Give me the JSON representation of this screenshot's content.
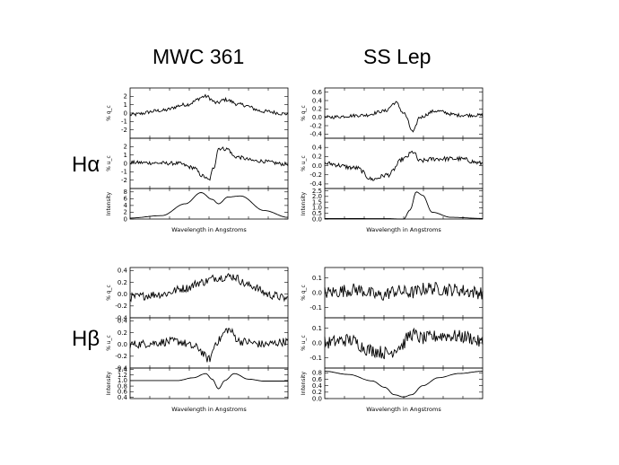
{
  "col_titles": [
    "MWC 361",
    "SS Lep"
  ],
  "row_labels": [
    "Hα",
    "Hβ"
  ],
  "chart_data": [
    {
      "type": "line",
      "object": "MWC 361",
      "line": "Hα",
      "xlabel": "Wavelength in Angstroms",
      "panels": [
        {
          "ylabel": "% q_c",
          "ylim": [
            -3,
            3
          ],
          "yticks": [
            "2",
            "1",
            "0",
            "-1",
            "-2"
          ],
          "ytick_values": [
            2,
            1,
            0,
            -1,
            -2
          ],
          "shape": [
            [
              0,
              -0.2
            ],
            [
              0.2,
              0.3
            ],
            [
              0.35,
              1.0
            ],
            [
              0.48,
              2.0
            ],
            [
              0.55,
              1.2
            ],
            [
              0.6,
              1.6
            ],
            [
              0.7,
              1.0
            ],
            [
              0.85,
              0.2
            ],
            [
              1,
              -0.1
            ]
          ],
          "noise": 0.22
        },
        {
          "ylabel": "% u_c",
          "ylim": [
            -3,
            3
          ],
          "yticks": [
            "2",
            "1",
            "0",
            "-1",
            "-2"
          ],
          "ytick_values": [
            2,
            1,
            0,
            -1,
            -2
          ],
          "shape": [
            [
              0,
              0.1
            ],
            [
              0.3,
              0.0
            ],
            [
              0.4,
              -0.5
            ],
            [
              0.46,
              -1.5
            ],
            [
              0.5,
              -2.0
            ],
            [
              0.53,
              -0.5
            ],
            [
              0.56,
              1.8
            ],
            [
              0.62,
              1.7
            ],
            [
              0.66,
              0.8
            ],
            [
              0.8,
              0.3
            ],
            [
              1,
              -0.1
            ]
          ],
          "noise": 0.22
        },
        {
          "ylabel": "Intensity",
          "ylim": [
            0,
            9
          ],
          "yticks": [
            "8",
            "6",
            "4",
            "2",
            "0"
          ],
          "ytick_values": [
            8,
            6,
            4,
            2,
            0
          ],
          "shape": [
            [
              0,
              0.3
            ],
            [
              0.2,
              1.0
            ],
            [
              0.35,
              4.5
            ],
            [
              0.45,
              7.8
            ],
            [
              0.52,
              5.8
            ],
            [
              0.56,
              4.5
            ],
            [
              0.62,
              6.5
            ],
            [
              0.7,
              6.8
            ],
            [
              0.85,
              2.5
            ],
            [
              1,
              0.5
            ]
          ],
          "noise": 0
        }
      ]
    },
    {
      "type": "line",
      "object": "SS Lep",
      "line": "Hα",
      "xlabel": "Wavelength in Angstroms",
      "panels": [
        {
          "ylabel": "% q_c",
          "ylim": [
            -0.5,
            0.7
          ],
          "yticks": [
            "0.6",
            "0.4",
            "0.2",
            "0.0",
            "-0.2",
            "-0.4"
          ],
          "ytick_values": [
            0.6,
            0.4,
            0.2,
            0.0,
            -0.2,
            -0.4
          ],
          "shape": [
            [
              0,
              0.0
            ],
            [
              0.25,
              0.05
            ],
            [
              0.38,
              0.15
            ],
            [
              0.45,
              0.35
            ],
            [
              0.5,
              0.1
            ],
            [
              0.56,
              -0.35
            ],
            [
              0.6,
              0.0
            ],
            [
              0.7,
              0.15
            ],
            [
              0.85,
              0.05
            ],
            [
              1,
              0.05
            ]
          ],
          "noise": 0.04
        },
        {
          "ylabel": "% u_c",
          "ylim": [
            -0.5,
            0.6
          ],
          "yticks": [
            "0.4",
            "0.2",
            "0.0",
            "-0.2",
            "-0.4"
          ],
          "ytick_values": [
            0.4,
            0.2,
            0.0,
            -0.2,
            -0.4
          ],
          "shape": [
            [
              0,
              0.05
            ],
            [
              0.2,
              -0.05
            ],
            [
              0.3,
              -0.3
            ],
            [
              0.4,
              -0.2
            ],
            [
              0.5,
              0.15
            ],
            [
              0.56,
              0.3
            ],
            [
              0.6,
              0.1
            ],
            [
              0.7,
              0.15
            ],
            [
              0.85,
              0.15
            ],
            [
              1,
              0.05
            ]
          ],
          "noise": 0.05
        },
        {
          "ylabel": "Intensity",
          "ylim": [
            0,
            2.7
          ],
          "yticks": [
            "2.5",
            "2.0",
            "1.5",
            "1.0",
            "0.5",
            "0.0"
          ],
          "ytick_values": [
            2.5,
            2.0,
            1.5,
            1.0,
            0.5,
            0.0
          ],
          "shape": [
            [
              0,
              0.05
            ],
            [
              0.4,
              0.03
            ],
            [
              0.5,
              0.0
            ],
            [
              0.54,
              0.8
            ],
            [
              0.58,
              2.4
            ],
            [
              0.62,
              2.1
            ],
            [
              0.68,
              0.6
            ],
            [
              0.8,
              0.15
            ],
            [
              1,
              0.05
            ]
          ],
          "noise": 0
        }
      ]
    },
    {
      "type": "line",
      "object": "MWC 361",
      "line": "Hβ",
      "xlabel": "Wavelength in Angstroms",
      "panels": [
        {
          "ylabel": "% q_c",
          "ylim": [
            -0.4,
            0.45
          ],
          "yticks": [
            "0.4",
            "0.2",
            "0.0",
            "-0.2",
            "-0.4"
          ],
          "ytick_values": [
            0.4,
            0.2,
            0.0,
            -0.2,
            -0.4
          ],
          "shape": [
            [
              0,
              -0.05
            ],
            [
              0.2,
              0.0
            ],
            [
              0.35,
              0.1
            ],
            [
              0.45,
              0.2
            ],
            [
              0.55,
              0.28
            ],
            [
              0.65,
              0.3
            ],
            [
              0.75,
              0.15
            ],
            [
              0.9,
              -0.02
            ],
            [
              1,
              -0.08
            ]
          ],
          "noise": 0.07
        },
        {
          "ylabel": "% u_c",
          "ylim": [
            -0.4,
            0.45
          ],
          "yticks": [
            "0.4",
            "0.2",
            "0.0",
            "-0.2",
            "-0.4"
          ],
          "ytick_values": [
            0.4,
            0.2,
            0.0,
            -0.2,
            -0.4
          ],
          "shape": [
            [
              0,
              0.0
            ],
            [
              0.3,
              0.05
            ],
            [
              0.42,
              -0.05
            ],
            [
              0.5,
              -0.25
            ],
            [
              0.55,
              0.05
            ],
            [
              0.62,
              0.25
            ],
            [
              0.7,
              0.05
            ],
            [
              0.85,
              0.0
            ],
            [
              1,
              0.05
            ]
          ],
          "noise": 0.07
        },
        {
          "ylabel": "Intensity",
          "ylim": [
            0.35,
            1.45
          ],
          "yticks": [
            "1.4",
            "1.2",
            "1.0",
            "0.8",
            "0.6",
            "0.4"
          ],
          "ytick_values": [
            1.4,
            1.2,
            1.0,
            0.8,
            0.6,
            0.4
          ],
          "shape": [
            [
              0,
              1.0
            ],
            [
              0.3,
              1.0
            ],
            [
              0.4,
              1.1
            ],
            [
              0.48,
              1.25
            ],
            [
              0.52,
              1.05
            ],
            [
              0.56,
              0.7
            ],
            [
              0.6,
              1.0
            ],
            [
              0.66,
              1.25
            ],
            [
              0.75,
              1.05
            ],
            [
              0.85,
              0.98
            ],
            [
              1,
              0.98
            ]
          ],
          "noise": 0
        }
      ]
    },
    {
      "type": "line",
      "object": "SS Lep",
      "line": "Hβ",
      "xlabel": "Wavelength in Angstroms",
      "panels": [
        {
          "ylabel": "% q_c",
          "ylim": [
            -0.17,
            0.17
          ],
          "yticks": [
            "0.1",
            "0.0",
            "-0.1"
          ],
          "ytick_values": [
            0.1,
            0.0,
            -0.1
          ],
          "shape": [
            [
              0,
              0.0
            ],
            [
              0.2,
              0.02
            ],
            [
              0.35,
              -0.02
            ],
            [
              0.45,
              0.01
            ],
            [
              0.55,
              0.0
            ],
            [
              0.65,
              0.03
            ],
            [
              0.8,
              0.02
            ],
            [
              1,
              0.0
            ]
          ],
          "noise": 0.045
        },
        {
          "ylabel": "% u_c",
          "ylim": [
            -0.17,
            0.17
          ],
          "yticks": [
            "0.1",
            "0.0",
            "-0.1"
          ],
          "ytick_values": [
            0.1,
            0.0,
            -0.1
          ],
          "shape": [
            [
              0,
              0.0
            ],
            [
              0.15,
              0.02
            ],
            [
              0.3,
              -0.05
            ],
            [
              0.4,
              -0.07
            ],
            [
              0.48,
              -0.02
            ],
            [
              0.55,
              0.06
            ],
            [
              0.62,
              0.03
            ],
            [
              0.75,
              0.05
            ],
            [
              0.9,
              0.04
            ],
            [
              1,
              0.0
            ]
          ],
          "noise": 0.045
        },
        {
          "ylabel": "Intensity",
          "ylim": [
            0.0,
            0.95
          ],
          "yticks": [
            "0.8",
            "0.6",
            "0.4",
            "0.2",
            "0.0"
          ],
          "ytick_values": [
            0.8,
            0.6,
            0.4,
            0.2,
            0.0
          ],
          "shape": [
            [
              0,
              0.85
            ],
            [
              0.15,
              0.75
            ],
            [
              0.3,
              0.55
            ],
            [
              0.38,
              0.35
            ],
            [
              0.44,
              0.12
            ],
            [
              0.5,
              0.05
            ],
            [
              0.55,
              0.12
            ],
            [
              0.62,
              0.4
            ],
            [
              0.72,
              0.65
            ],
            [
              0.85,
              0.78
            ],
            [
              1,
              0.85
            ]
          ],
          "noise": 0
        }
      ]
    }
  ]
}
